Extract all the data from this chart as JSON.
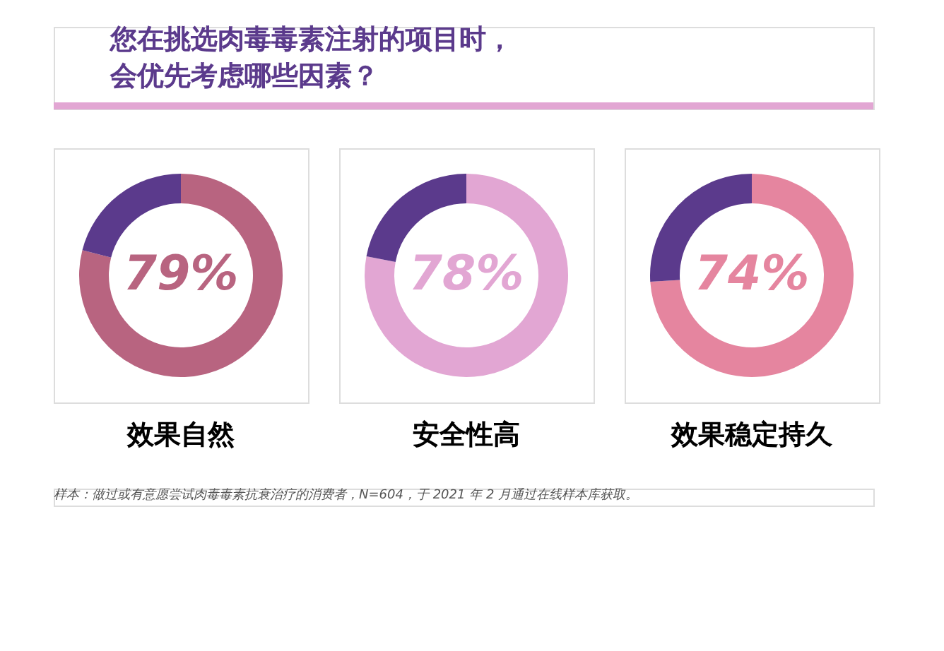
{
  "chart_data": [
    {
      "type": "other",
      "title": "您在挑选肉毒毒素注射的项目时，会优先考虑哪些因素？",
      "annotations": [
        "样本：做过或有意愿尝试肉毒毒素抗衰治疗的消费者，N=604，于 2021 年 2 月通过在线样本库获取。"
      ]
    },
    {
      "type": "donut",
      "title": "效果自然",
      "categories": [
        null,
        null
      ],
      "values": [
        79,
        21
      ],
      "colors": [
        "#b86480",
        "#5b3a8c"
      ],
      "value_labels": [
        "79%",
        null
      ]
    },
    {
      "type": "donut",
      "title": "安全性高",
      "categories": [
        null,
        null
      ],
      "values": [
        78,
        22
      ],
      "colors": [
        "#e2a6d3",
        "#5b3a8c"
      ],
      "value_labels": [
        "78%",
        null
      ]
    },
    {
      "type": "donut",
      "title": "效果稳定持久",
      "categories": [
        null,
        null
      ],
      "values": [
        74,
        26
      ],
      "colors": [
        "#e5859f",
        "#5b3a8c"
      ],
      "value_labels": [
        "74%",
        null
      ]
    }
  ]
}
